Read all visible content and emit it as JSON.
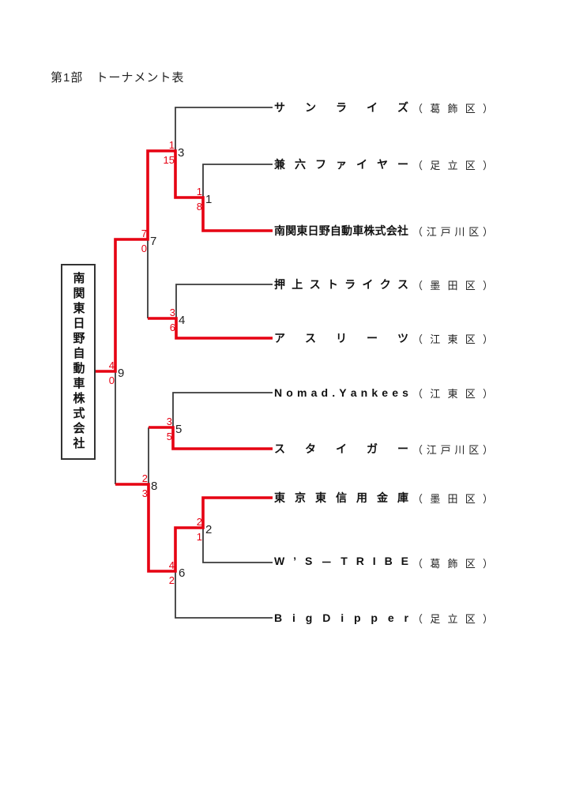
{
  "title": "第1部　トーナメント表",
  "champion": {
    "name": "南関東日野自動車株式会社"
  },
  "colors": {
    "winner_path": "#e60012",
    "line": "#3a3a3a",
    "text": "#1a1a1a"
  },
  "teams": [
    {
      "name": "サンライズ",
      "district": "（葛飾区）",
      "winner_line": false
    },
    {
      "name": "兼六ファイヤー",
      "district": "（足立区）",
      "winner_line": false
    },
    {
      "name": "南関東日野自動車株式会社",
      "district": "（江戸川区）",
      "winner_line": true
    },
    {
      "name": "押上ストライクス",
      "district": "（墨田区）",
      "winner_line": false
    },
    {
      "name": "アスリーツ",
      "district": "（江東区）",
      "winner_line": true
    },
    {
      "name": "Nomad.Yankees",
      "district": "（江東区）",
      "winner_line": false
    },
    {
      "name": "スタイガー",
      "district": "（江戸川区）",
      "winner_line": true
    },
    {
      "name": "東京東信用金庫",
      "district": "（墨田区）",
      "winner_line": true
    },
    {
      "name": "W’S－TRIBE",
      "district": "（葛飾区）",
      "winner_line": false
    },
    {
      "name": "BigDipper",
      "district": "（足立区）",
      "winner_line": false
    }
  ],
  "games": {
    "g1": {
      "no": "1",
      "top_team": "兼六ファイヤー",
      "bottom_team": "南関東日野自動車株式会社",
      "top_score": "1",
      "bottom_score": "8",
      "winner": "南関東日野自動車株式会社"
    },
    "g2": {
      "no": "2",
      "top_team": "東京東信用金庫",
      "bottom_team": "W’S－TRIBE",
      "top_score": "2",
      "bottom_score": "1",
      "winner": "東京東信用金庫"
    },
    "g3": {
      "no": "3",
      "top_team": "サンライズ",
      "bottom_team": "南関東日野自動車株式会社",
      "top_score": "1",
      "bottom_score": "15",
      "winner": "南関東日野自動車株式会社"
    },
    "g4": {
      "no": "4",
      "top_team": "押上ストライクス",
      "bottom_team": "アスリーツ",
      "top_score": "3",
      "bottom_score": "6",
      "winner": "アスリーツ"
    },
    "g5": {
      "no": "5",
      "top_team": "Nomad.Yankees",
      "bottom_team": "スタイガー",
      "top_score": "3",
      "bottom_score": "5",
      "winner": "スタイガー"
    },
    "g6": {
      "no": "6",
      "top_team": "東京東信用金庫",
      "bottom_team": "BigDipper",
      "top_score": "4",
      "bottom_score": "2",
      "winner": "東京東信用金庫"
    },
    "g7": {
      "no": "7",
      "top_team": "南関東日野自動車株式会社",
      "bottom_team": "アスリーツ",
      "top_score": "7",
      "bottom_score": "0",
      "winner": "南関東日野自動車株式会社"
    },
    "g8": {
      "no": "8",
      "top_team": "スタイガー",
      "bottom_team": "東京東信用金庫",
      "top_score": "2",
      "bottom_score": "3",
      "winner": "東京東信用金庫"
    },
    "g9": {
      "no": "9",
      "top_team": "南関東日野自動車株式会社",
      "bottom_team": "東京東信用金庫",
      "top_score": "4",
      "bottom_score": "0",
      "winner": "南関東日野自動車株式会社"
    }
  }
}
